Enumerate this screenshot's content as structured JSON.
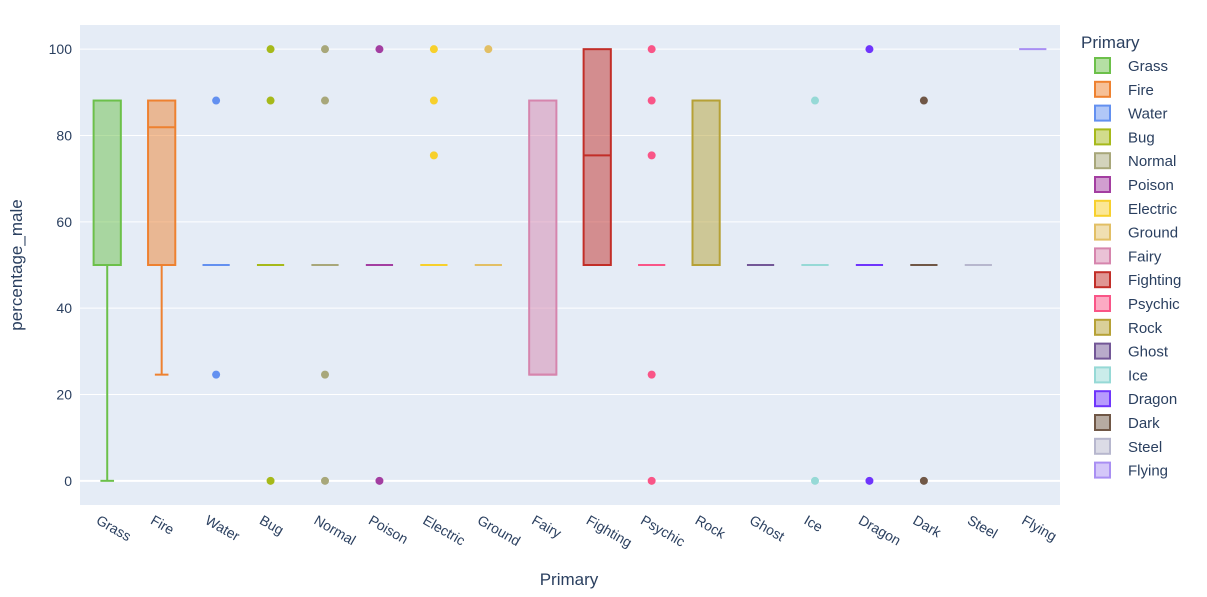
{
  "chart_data": {
    "type": "box",
    "title": "",
    "xlabel": "Primary",
    "ylabel": "percentage_male",
    "ylim": [
      -5.6,
      105.6
    ],
    "yticks": [
      0,
      20,
      40,
      60,
      80,
      100
    ],
    "ytick_labels": [
      "0",
      "20",
      "40",
      "60",
      "80",
      "100"
    ],
    "legend_title": "Primary",
    "legend_position": "right",
    "categories": [
      "Grass",
      "Fire",
      "Water",
      "Bug",
      "Normal",
      "Poison",
      "Electric",
      "Ground",
      "Fairy",
      "Fighting",
      "Psychic",
      "Rock",
      "Ghost",
      "Ice",
      "Dragon",
      "Dark",
      "Steel",
      "Flying"
    ],
    "series": [
      {
        "name": "Grass",
        "color": "#6cc04a",
        "q1": 50,
        "median": 50,
        "q3": 88.1,
        "lowerfence": 0,
        "upperfence": 88.1,
        "outliers": []
      },
      {
        "name": "Fire",
        "color": "#ee8130",
        "q1": 50,
        "median": 81.9,
        "q3": 88.1,
        "lowerfence": 24.6,
        "upperfence": 88.1,
        "outliers": []
      },
      {
        "name": "Water",
        "color": "#6390f0",
        "q1": 50,
        "median": 50,
        "q3": 50,
        "lowerfence": 50,
        "upperfence": 50,
        "outliers": [
          88.1,
          24.6
        ]
      },
      {
        "name": "Bug",
        "color": "#a6b91a",
        "q1": 50,
        "median": 50,
        "q3": 50,
        "lowerfence": 50,
        "upperfence": 50,
        "outliers": [
          100,
          88.1,
          0
        ]
      },
      {
        "name": "Normal",
        "color": "#a8a77a",
        "q1": 50,
        "median": 50,
        "q3": 50,
        "lowerfence": 50,
        "upperfence": 50,
        "outliers": [
          100,
          88.1,
          24.6,
          0
        ]
      },
      {
        "name": "Poison",
        "color": "#a33ea1",
        "q1": 50,
        "median": 50,
        "q3": 50,
        "lowerfence": 50,
        "upperfence": 50,
        "outliers": [
          100,
          0
        ]
      },
      {
        "name": "Electric",
        "color": "#f7d02c",
        "q1": 50,
        "median": 50,
        "q3": 50,
        "lowerfence": 50,
        "upperfence": 50,
        "outliers": [
          100,
          88.1,
          75.4
        ]
      },
      {
        "name": "Ground",
        "color": "#e2bf65",
        "q1": 50,
        "median": 50,
        "q3": 50,
        "lowerfence": 50,
        "upperfence": 50,
        "outliers": [
          100
        ]
      },
      {
        "name": "Fairy",
        "color": "#d685ad",
        "q1": 24.6,
        "median": 24.6,
        "q3": 88.1,
        "lowerfence": 24.6,
        "upperfence": 88.1,
        "outliers": []
      },
      {
        "name": "Fighting",
        "color": "#c22e28",
        "q1": 50,
        "median": 75.4,
        "q3": 100,
        "lowerfence": 50,
        "upperfence": 100,
        "outliers": []
      },
      {
        "name": "Psychic",
        "color": "#f95587",
        "q1": 50,
        "median": 50,
        "q3": 50,
        "lowerfence": 50,
        "upperfence": 50,
        "outliers": [
          100,
          88.1,
          75.4,
          24.6,
          0
        ]
      },
      {
        "name": "Rock",
        "color": "#b6a136",
        "q1": 50,
        "median": 88.1,
        "q3": 88.1,
        "lowerfence": 50,
        "upperfence": 88.1,
        "outliers": []
      },
      {
        "name": "Ghost",
        "color": "#735797",
        "q1": 50,
        "median": 50,
        "q3": 50,
        "lowerfence": 50,
        "upperfence": 50,
        "outliers": []
      },
      {
        "name": "Ice",
        "color": "#96d9d6",
        "q1": 50,
        "median": 50,
        "q3": 50,
        "lowerfence": 50,
        "upperfence": 50,
        "outliers": [
          88.1,
          0
        ]
      },
      {
        "name": "Dragon",
        "color": "#6f35fc",
        "q1": 50,
        "median": 50,
        "q3": 50,
        "lowerfence": 50,
        "upperfence": 50,
        "outliers": [
          100,
          0
        ]
      },
      {
        "name": "Dark",
        "color": "#705746",
        "q1": 50,
        "median": 50,
        "q3": 50,
        "lowerfence": 50,
        "upperfence": 50,
        "outliers": [
          88.1,
          0
        ]
      },
      {
        "name": "Steel",
        "color": "#b7b7ce",
        "q1": 50,
        "median": 50,
        "q3": 50,
        "lowerfence": 50,
        "upperfence": 50,
        "outliers": []
      },
      {
        "name": "Flying",
        "color": "#a98ff3",
        "q1": 100,
        "median": 100,
        "q3": 100,
        "lowerfence": 100,
        "upperfence": 100,
        "outliers": []
      }
    ]
  }
}
